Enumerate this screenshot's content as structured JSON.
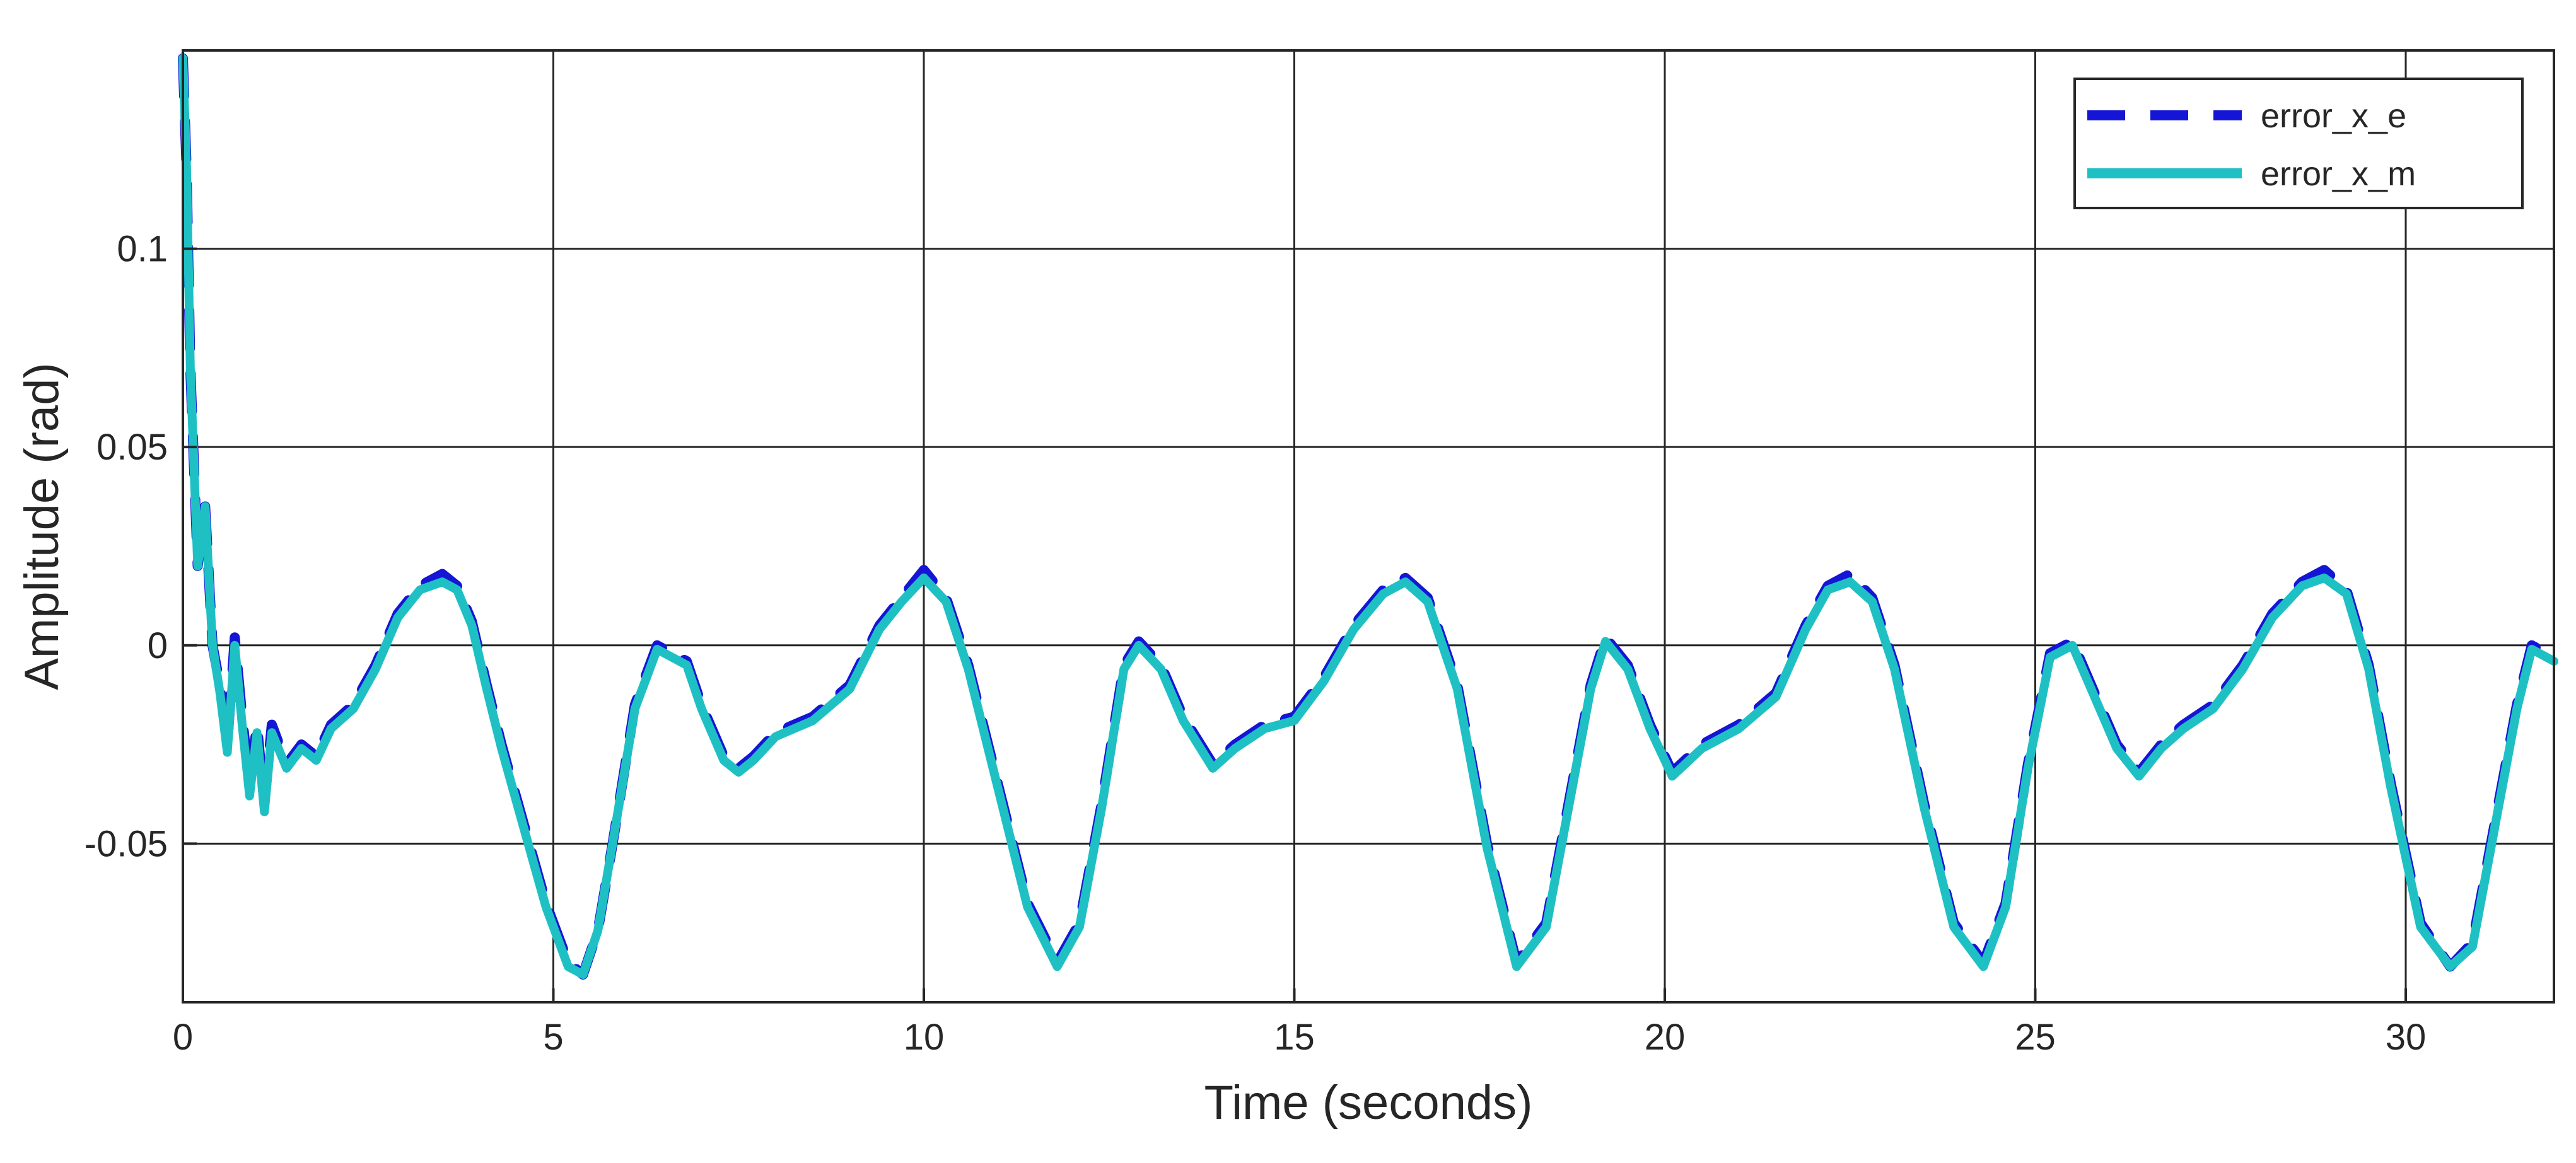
{
  "chart_data": {
    "type": "line",
    "title": "",
    "xlabel": "Time (seconds)",
    "ylabel": "Amplitude (rad)",
    "xlim": [
      0,
      32
    ],
    "ylim": [
      -0.09,
      0.15
    ],
    "xticks": [
      0,
      5,
      10,
      15,
      20,
      25,
      30
    ],
    "xtick_labels": [
      "0",
      "5",
      "10",
      "15",
      "20",
      "25",
      "30"
    ],
    "yticks": [
      -0.05,
      0,
      0.05,
      0.1
    ],
    "ytick_labels": [
      "-0.05",
      "0",
      "0.05",
      "0.1"
    ],
    "grid": true,
    "legend_position": "top-right",
    "colors": {
      "error_x_e": "#1515d6",
      "error_x_m": "#1fc0c4",
      "grid": "#262626",
      "axis": "#262626"
    },
    "series": [
      {
        "name": "error_x_e",
        "style": "dashed",
        "x": [
          0,
          0.05,
          0.1,
          0.2,
          0.3,
          0.4,
          0.5,
          0.6,
          0.7,
          0.8,
          0.9,
          1.0,
          1.1,
          1.2,
          1.4,
          1.6,
          1.8,
          2.0,
          2.3,
          2.6,
          2.9,
          3.2,
          3.5,
          3.7,
          3.9,
          4.1,
          4.3,
          4.6,
          4.9,
          5.2,
          5.4,
          5.6,
          5.8,
          6.1,
          6.4,
          6.6,
          6.8,
          7.0,
          7.3,
          7.5,
          7.7,
          8.0,
          8.5,
          9.0,
          9.4,
          9.7,
          10.0,
          10.3,
          10.6,
          11.0,
          11.4,
          11.8,
          12.1,
          12.4,
          12.7,
          12.9,
          13.2,
          13.5,
          13.9,
          14.2,
          14.6,
          15.0,
          15.4,
          15.8,
          16.2,
          16.5,
          16.8,
          17.2,
          17.6,
          18.0,
          18.4,
          18.7,
          19.0,
          19.2,
          19.5,
          19.8,
          20.1,
          20.5,
          21.0,
          21.5,
          21.9,
          22.2,
          22.5,
          22.8,
          23.1,
          23.5,
          23.9,
          24.3,
          24.6,
          24.9,
          25.2,
          25.5,
          25.8,
          26.1,
          26.4,
          26.7,
          27.0,
          27.4,
          27.8,
          28.2,
          28.6,
          28.9,
          29.2,
          29.5,
          29.8,
          30.2,
          30.6,
          30.9,
          31.2,
          31.5,
          31.7,
          32.0
        ],
        "y": [
          0.148,
          0.12,
          0.07,
          0.02,
          0.035,
          0.0,
          -0.01,
          -0.025,
          0.002,
          -0.018,
          -0.035,
          -0.02,
          -0.04,
          -0.02,
          -0.03,
          -0.025,
          -0.028,
          -0.02,
          -0.015,
          -0.005,
          0.008,
          0.015,
          0.018,
          0.015,
          0.006,
          -0.01,
          -0.025,
          -0.045,
          -0.065,
          -0.08,
          -0.083,
          -0.072,
          -0.05,
          -0.015,
          0.0,
          -0.002,
          -0.004,
          -0.015,
          -0.028,
          -0.031,
          -0.028,
          -0.022,
          -0.018,
          -0.01,
          0.005,
          0.012,
          0.019,
          0.012,
          -0.005,
          -0.035,
          -0.065,
          -0.08,
          -0.07,
          -0.04,
          -0.005,
          0.001,
          -0.005,
          -0.018,
          -0.03,
          -0.025,
          -0.02,
          -0.018,
          -0.008,
          0.005,
          0.014,
          0.017,
          0.012,
          -0.01,
          -0.05,
          -0.08,
          -0.07,
          -0.04,
          -0.01,
          0.002,
          -0.005,
          -0.02,
          -0.032,
          -0.025,
          -0.02,
          -0.012,
          0.005,
          0.015,
          0.018,
          0.012,
          -0.005,
          -0.04,
          -0.07,
          -0.08,
          -0.065,
          -0.03,
          -0.002,
          0.001,
          -0.012,
          -0.025,
          -0.032,
          -0.025,
          -0.02,
          -0.015,
          -0.005,
          0.008,
          0.016,
          0.019,
          0.014,
          -0.005,
          -0.035,
          -0.07,
          -0.081,
          -0.075,
          -0.045,
          -0.015,
          0.0,
          -0.003
        ]
      },
      {
        "name": "error_x_m",
        "style": "solid",
        "x": [
          0,
          0.05,
          0.1,
          0.2,
          0.3,
          0.4,
          0.5,
          0.6,
          0.7,
          0.8,
          0.9,
          1.0,
          1.1,
          1.2,
          1.4,
          1.6,
          1.8,
          2.0,
          2.3,
          2.6,
          2.9,
          3.2,
          3.5,
          3.7,
          3.9,
          4.1,
          4.3,
          4.6,
          4.9,
          5.2,
          5.4,
          5.6,
          5.8,
          6.1,
          6.4,
          6.6,
          6.8,
          7.0,
          7.3,
          7.5,
          7.7,
          8.0,
          8.5,
          9.0,
          9.4,
          9.7,
          10.0,
          10.3,
          10.6,
          11.0,
          11.4,
          11.8,
          12.1,
          12.4,
          12.7,
          12.9,
          13.2,
          13.5,
          13.9,
          14.2,
          14.6,
          15.0,
          15.4,
          15.8,
          16.2,
          16.5,
          16.8,
          17.2,
          17.6,
          18.0,
          18.4,
          18.7,
          19.0,
          19.2,
          19.5,
          19.8,
          20.1,
          20.5,
          21.0,
          21.5,
          21.9,
          22.2,
          22.5,
          22.8,
          23.1,
          23.5,
          23.9,
          24.3,
          24.6,
          24.9,
          25.2,
          25.5,
          25.8,
          26.1,
          26.4,
          26.7,
          27.0,
          27.4,
          27.8,
          28.2,
          28.6,
          28.9,
          29.2,
          29.5,
          29.8,
          30.2,
          30.6,
          30.9,
          31.2,
          31.5,
          31.7,
          32.0
        ],
        "y": [
          0.148,
          0.12,
          0.07,
          0.02,
          0.035,
          0.0,
          -0.012,
          -0.027,
          0.0,
          -0.02,
          -0.038,
          -0.022,
          -0.042,
          -0.022,
          -0.031,
          -0.026,
          -0.029,
          -0.021,
          -0.016,
          -0.006,
          0.007,
          0.014,
          0.016,
          0.014,
          0.005,
          -0.011,
          -0.026,
          -0.046,
          -0.066,
          -0.081,
          -0.083,
          -0.072,
          -0.05,
          -0.016,
          -0.001,
          -0.003,
          -0.005,
          -0.016,
          -0.029,
          -0.032,
          -0.029,
          -0.023,
          -0.019,
          -0.011,
          0.004,
          0.011,
          0.017,
          0.011,
          -0.006,
          -0.036,
          -0.066,
          -0.081,
          -0.071,
          -0.041,
          -0.006,
          0.0,
          -0.006,
          -0.019,
          -0.031,
          -0.026,
          -0.021,
          -0.019,
          -0.009,
          0.004,
          0.013,
          0.016,
          0.011,
          -0.011,
          -0.051,
          -0.081,
          -0.071,
          -0.041,
          -0.011,
          0.001,
          -0.006,
          -0.021,
          -0.033,
          -0.026,
          -0.021,
          -0.013,
          0.004,
          0.014,
          0.016,
          0.011,
          -0.006,
          -0.041,
          -0.071,
          -0.081,
          -0.066,
          -0.031,
          -0.003,
          0.0,
          -0.013,
          -0.026,
          -0.033,
          -0.026,
          -0.021,
          -0.016,
          -0.006,
          0.007,
          0.015,
          0.017,
          0.013,
          -0.006,
          -0.036,
          -0.071,
          -0.081,
          -0.076,
          -0.046,
          -0.016,
          -0.001,
          -0.004
        ]
      }
    ]
  }
}
